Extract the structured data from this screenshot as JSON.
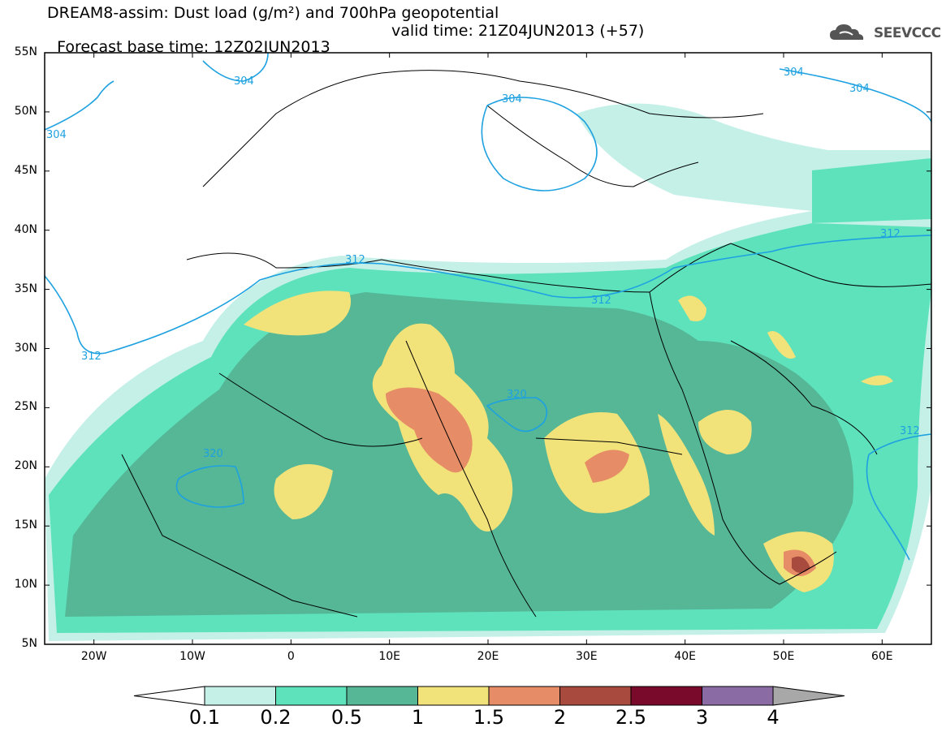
{
  "title": {
    "line1": "DREAM8-assim: Dust load (g/m²) and 700hPa geopotential",
    "line2_base": "Forecast base time: 12Z02JUN2013",
    "line2_valid": "valid time: 21Z04JUN2013 (+57)"
  },
  "logo": {
    "text": "SEEVCCC",
    "icon": "cloud-icon"
  },
  "axes": {
    "lat_labels": [
      "55N",
      "50N",
      "45N",
      "40N",
      "35N",
      "30N",
      "25N",
      "20N",
      "15N",
      "10N",
      "5N"
    ],
    "lon_labels": [
      "20W",
      "10W",
      "0",
      "10E",
      "20E",
      "30E",
      "40E",
      "50E",
      "60E"
    ],
    "lat_range": [
      5,
      55
    ],
    "lon_range": [
      -25,
      65
    ]
  },
  "colorbar": {
    "labels": [
      "0.1",
      "0.2",
      "0.5",
      "1",
      "1.5",
      "2",
      "2.5",
      "3",
      "4"
    ],
    "colors": [
      "#c4f0e8",
      "#5ee2bc",
      "#55b796",
      "#f2e27a",
      "#e68c66",
      "#a84a3d",
      "#7a0a2c",
      "#8b6ba3",
      "#a8a8a8"
    ]
  },
  "contours": [
    {
      "label": "312"
    },
    {
      "label": "312"
    },
    {
      "label": "312"
    },
    {
      "label": "312"
    },
    {
      "label": "312"
    },
    {
      "label": "304"
    },
    {
      "label": "304"
    },
    {
      "label": "304"
    },
    {
      "label": "304"
    },
    {
      "label": "304"
    },
    {
      "label": "320"
    },
    {
      "label": "320"
    }
  ]
}
